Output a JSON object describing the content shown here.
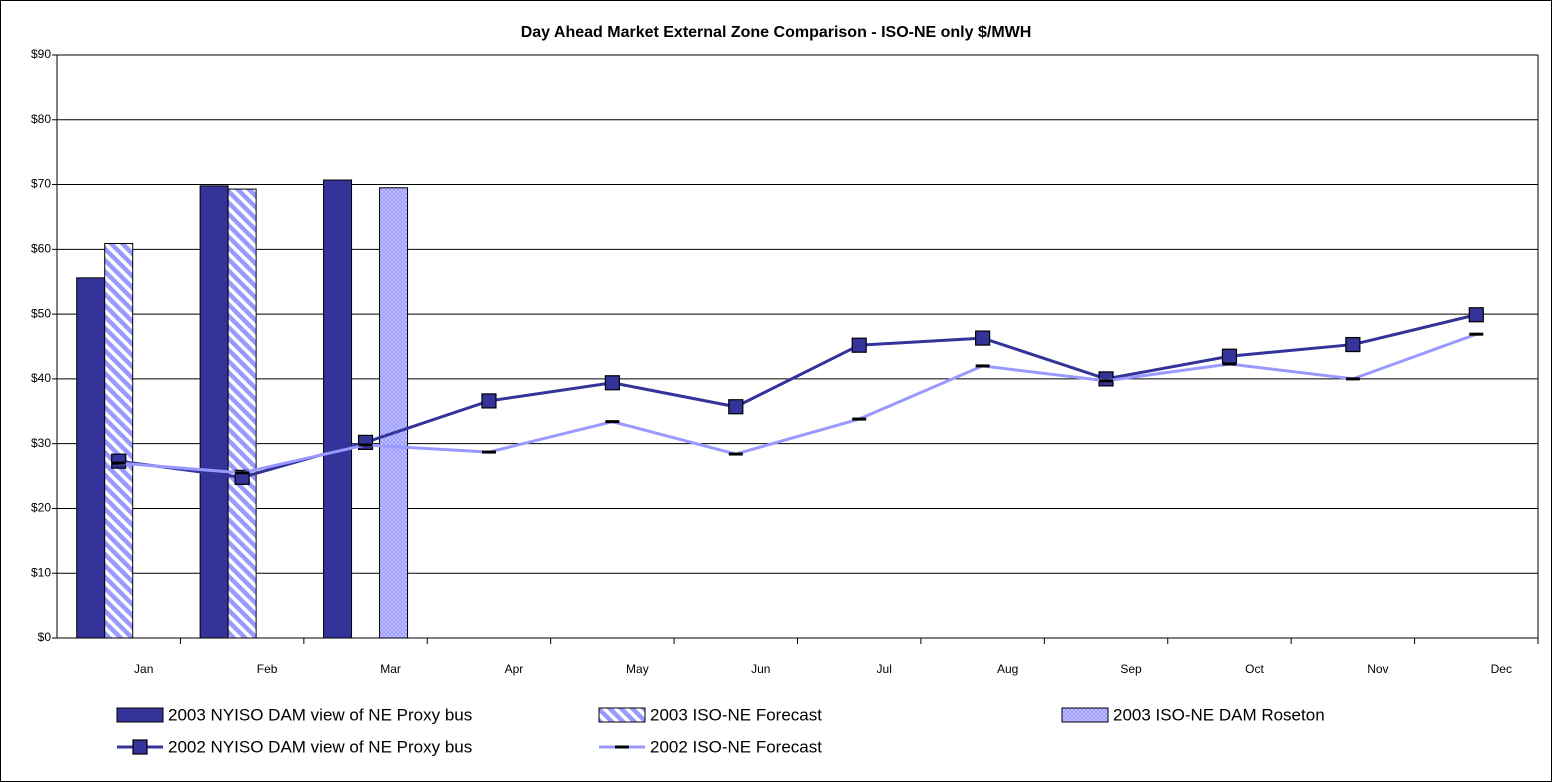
{
  "chart_data": {
    "type": "bar",
    "title": "Day Ahead Market External Zone Comparison - ISO-NE only $/MWH",
    "categories": [
      "Jan",
      "Feb",
      "Mar",
      "Apr",
      "May",
      "Jun",
      "Jul",
      "Aug",
      "Sep",
      "Oct",
      "Nov",
      "Dec"
    ],
    "series": [
      {
        "name": "2003 NYISO DAM view of NE Proxy bus",
        "type": "bar",
        "color": "#333399",
        "pattern": "solid",
        "values": [
          55.6,
          69.8,
          70.7,
          null,
          null,
          null,
          null,
          null,
          null,
          null,
          null,
          null
        ]
      },
      {
        "name": "2003 ISO-NE Forecast",
        "type": "bar",
        "color": "#9999ff",
        "pattern": "diagonal",
        "values": [
          60.9,
          69.3,
          null,
          null,
          null,
          null,
          null,
          null,
          null,
          null,
          null,
          null
        ]
      },
      {
        "name": "2003 ISO-NE DAM Roseton",
        "type": "bar",
        "color": "#9999ff",
        "pattern": "crosshatch",
        "values": [
          null,
          null,
          69.5,
          null,
          null,
          null,
          null,
          null,
          null,
          null,
          null,
          null
        ]
      },
      {
        "name": "2002 NYISO DAM view of NE Proxy bus",
        "type": "line",
        "color": "#333399",
        "marker": "square",
        "values": [
          27.3,
          24.8,
          30.2,
          36.6,
          39.4,
          35.7,
          45.2,
          46.3,
          40.0,
          43.5,
          45.3,
          49.9
        ]
      },
      {
        "name": "2002 ISO-NE Forecast",
        "type": "line",
        "color": "#9999ff",
        "marker": "dash",
        "values": [
          27.0,
          25.5,
          29.8,
          28.7,
          33.4,
          28.4,
          33.8,
          42.0,
          39.7,
          42.3,
          40.0,
          46.9
        ]
      }
    ],
    "ylim": [
      0,
      90
    ],
    "yticks": [
      {
        "value": 0,
        "label": "$0"
      },
      {
        "value": 10,
        "label": "$10"
      },
      {
        "value": 20,
        "label": "$20"
      },
      {
        "value": 30,
        "label": "$30"
      },
      {
        "value": 40,
        "label": "$40"
      },
      {
        "value": 50,
        "label": "$50"
      },
      {
        "value": 60,
        "label": "$60"
      },
      {
        "value": 70,
        "label": "$70"
      },
      {
        "value": 80,
        "label": "$80"
      },
      {
        "value": 90,
        "label": "$90"
      }
    ],
    "grid": true,
    "legend": "bottom"
  }
}
